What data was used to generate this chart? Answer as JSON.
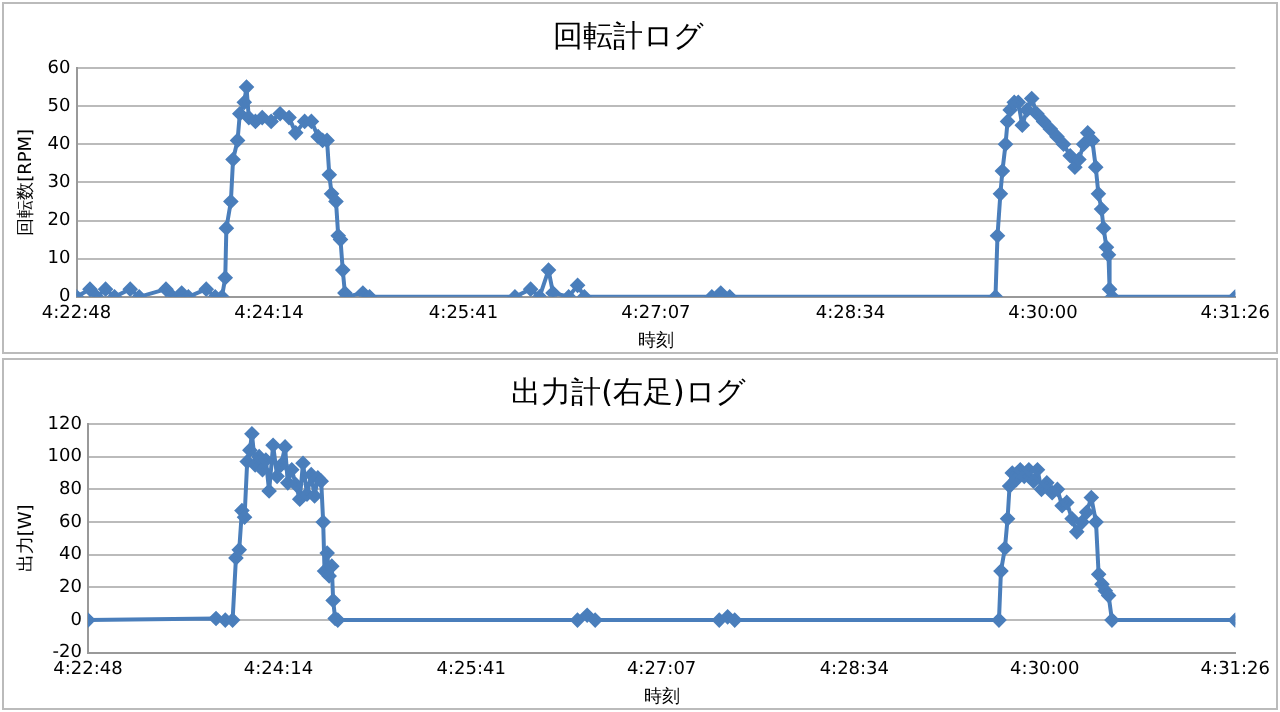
{
  "chart_data": [
    {
      "type": "line",
      "title": "回転計ログ",
      "xlabel": "時刻",
      "ylabel": "回転数[RPM]",
      "xlim": [
        4.38,
        4.52389
      ],
      "xticks": [
        {
          "value": 4.38,
          "label": "4:22:48"
        },
        {
          "value": 4.40389,
          "label": "4:24:14"
        },
        {
          "value": 4.42806,
          "label": "4:25:41"
        },
        {
          "value": 4.45194,
          "label": "4:27:07"
        },
        {
          "value": 4.47611,
          "label": "4:28:34"
        },
        {
          "value": 4.5,
          "label": "4:30:00"
        },
        {
          "value": 4.52389,
          "label": "4:31:26"
        }
      ],
      "ylim": [
        0,
        60
      ],
      "yticks": [
        0,
        10,
        20,
        30,
        40,
        50,
        60
      ],
      "grid": "y",
      "legend": false,
      "marker": "diamond",
      "line_style": "solid",
      "series": [
        {
          "color": "#4a7ebb",
          "x": [
            4.38,
            4.38167,
            4.3825,
            4.38361,
            4.38472,
            4.38667,
            4.38778,
            4.39111,
            4.39194,
            4.39306,
            4.39389,
            4.39611,
            4.39722,
            4.39806,
            4.39847,
            4.39861,
            4.39917,
            4.39944,
            4.4,
            4.40028,
            4.40083,
            4.40111,
            4.40139,
            4.40222,
            4.40306,
            4.40417,
            4.40528,
            4.40639,
            4.40722,
            4.40833,
            4.40917,
            4.41,
            4.41056,
            4.41111,
            4.41139,
            4.41167,
            4.41222,
            4.4125,
            4.41278,
            4.41306,
            4.41333,
            4.41361,
            4.41556,
            4.41639,
            4.43444,
            4.43639,
            4.4375,
            4.43861,
            4.43917,
            4.44111,
            4.44222,
            4.44306,
            4.45889,
            4.46,
            4.46111,
            4.49411,
            4.49436,
            4.49472,
            4.49497,
            4.49536,
            4.49561,
            4.49594,
            4.49644,
            4.49694,
            4.49744,
            4.49803,
            4.49861,
            4.49925,
            4.50008,
            4.50092,
            4.50175,
            4.50256,
            4.50339,
            4.50397,
            4.50447,
            4.50506,
            4.50556,
            4.50614,
            4.50656,
            4.50689,
            4.50728,
            4.50753,
            4.50789,
            4.50814,
            4.50828,
            4.50861,
            4.52389
          ],
          "values": [
            0,
            2,
            0,
            2,
            0,
            2,
            0,
            2,
            0,
            1,
            0,
            2,
            0,
            0,
            5,
            18,
            25,
            36,
            41,
            48,
            51,
            55,
            47,
            46,
            47,
            46,
            48,
            47,
            43,
            46,
            46,
            42,
            41,
            41,
            32,
            27,
            25,
            16,
            15,
            7,
            1,
            0,
            1,
            0,
            0,
            2,
            0,
            7,
            1,
            0,
            3,
            0,
            0,
            1,
            0,
            0,
            16,
            27,
            33,
            40,
            46,
            49,
            51,
            51,
            45,
            49,
            52,
            48,
            46,
            44,
            42,
            40,
            37,
            34,
            36,
            40,
            43,
            41,
            34,
            27,
            23,
            18,
            13,
            11,
            2,
            0,
            0
          ]
        }
      ]
    },
    {
      "type": "line",
      "title": "出力計(右足)ログ",
      "xlabel": "時刻",
      "ylabel": "出力[W]",
      "xlim": [
        4.38,
        4.52389
      ],
      "xticks": [
        {
          "value": 4.38,
          "label": "4:22:48"
        },
        {
          "value": 4.40389,
          "label": "4:24:14"
        },
        {
          "value": 4.42806,
          "label": "4:25:41"
        },
        {
          "value": 4.45194,
          "label": "4:27:07"
        },
        {
          "value": 4.47611,
          "label": "4:28:34"
        },
        {
          "value": 4.5,
          "label": "4:30:00"
        },
        {
          "value": 4.52389,
          "label": "4:31:26"
        }
      ],
      "ylim": [
        -20,
        120
      ],
      "yticks": [
        -20,
        0,
        20,
        40,
        60,
        80,
        100,
        120
      ],
      "grid": "y",
      "legend": false,
      "marker": "diamond",
      "line_style": "solid",
      "series": [
        {
          "color": "#4a7ebb",
          "x": [
            4.38,
            4.39606,
            4.39722,
            4.39814,
            4.39856,
            4.39897,
            4.39931,
            4.39964,
            4.39997,
            4.40031,
            4.40056,
            4.40097,
            4.40147,
            4.40189,
            4.40231,
            4.40272,
            4.40322,
            4.40372,
            4.40422,
            4.40472,
            4.40506,
            4.40556,
            4.40606,
            4.40656,
            4.40697,
            4.40747,
            4.408,
            4.40842,
            4.40883,
            4.40925,
            4.4095,
            4.40967,
            4.41,
            4.41025,
            4.41058,
            4.41075,
            4.411,
            4.41133,
            4.44139,
            4.44261,
            4.44361,
            4.45917,
            4.46022,
            4.46111,
            4.49425,
            4.4945,
            4.495,
            4.49533,
            4.49558,
            4.49592,
            4.49642,
            4.49692,
            4.49742,
            4.498,
            4.49858,
            4.49908,
            4.49958,
            4.50025,
            4.50092,
            4.50158,
            4.50217,
            4.50275,
            4.50342,
            4.504,
            4.50467,
            4.50525,
            4.50583,
            4.50642,
            4.50675,
            4.50717,
            4.50758,
            4.508,
            4.50842,
            4.52389
          ],
          "values": [
            0,
            1,
            0,
            0,
            38,
            43,
            67,
            63,
            97,
            104,
            114,
            95,
            100,
            92,
            98,
            79,
            107,
            88,
            95,
            106,
            84,
            92,
            83,
            74,
            96,
            77,
            89,
            76,
            87,
            85,
            60,
            30,
            41,
            27,
            33,
            12,
            1,
            0,
            0,
            3,
            0,
            0,
            2,
            0,
            0,
            30,
            44,
            62,
            82,
            90,
            86,
            92,
            88,
            92,
            85,
            92,
            80,
            84,
            78,
            80,
            70,
            72,
            62,
            54,
            60,
            66,
            75,
            60,
            28,
            22,
            18,
            15,
            0,
            0
          ]
        }
      ]
    }
  ]
}
